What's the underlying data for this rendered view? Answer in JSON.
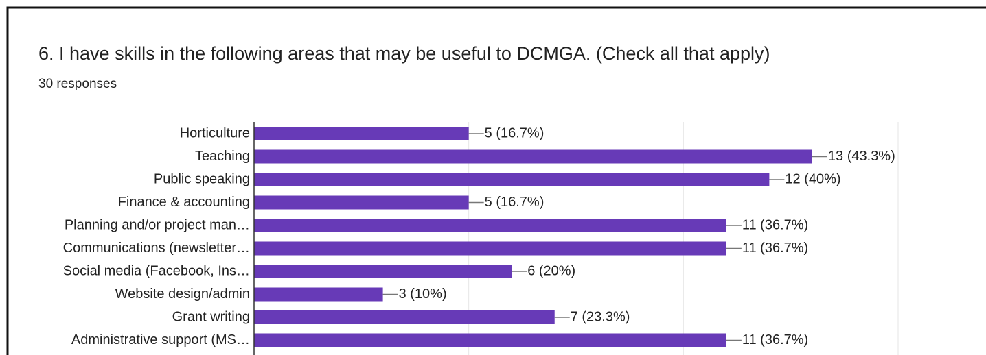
{
  "chart_data": {
    "type": "hbar",
    "title": "6. I have skills in the following areas that may be useful to DCMGA. (Check all that apply)",
    "subtitle": "30 responses",
    "categories": [
      "Horticulture",
      "Teaching",
      "Public speaking",
      "Finance & accounting",
      "Planning and/or project man…",
      "Communications (newsletter…",
      "Social media (Facebook, Ins…",
      "Website design/admin",
      "Grant writing",
      "Administrative support (MS…"
    ],
    "values": [
      5,
      13,
      12,
      5,
      11,
      11,
      6,
      3,
      7,
      11
    ],
    "value_labels": [
      "5 (16.7%)",
      "13 (43.3%)",
      "12 (40%)",
      "5 (16.7%)",
      "11 (36.7%)",
      "11 (36.7%)",
      "6 (20%)",
      "3 (10%)",
      "7 (23.3%)",
      "11 (36.7%)"
    ],
    "color": "#673ab7",
    "xlim": [
      0,
      15
    ],
    "xticks": [
      0,
      5,
      10,
      15
    ],
    "grid": true
  }
}
